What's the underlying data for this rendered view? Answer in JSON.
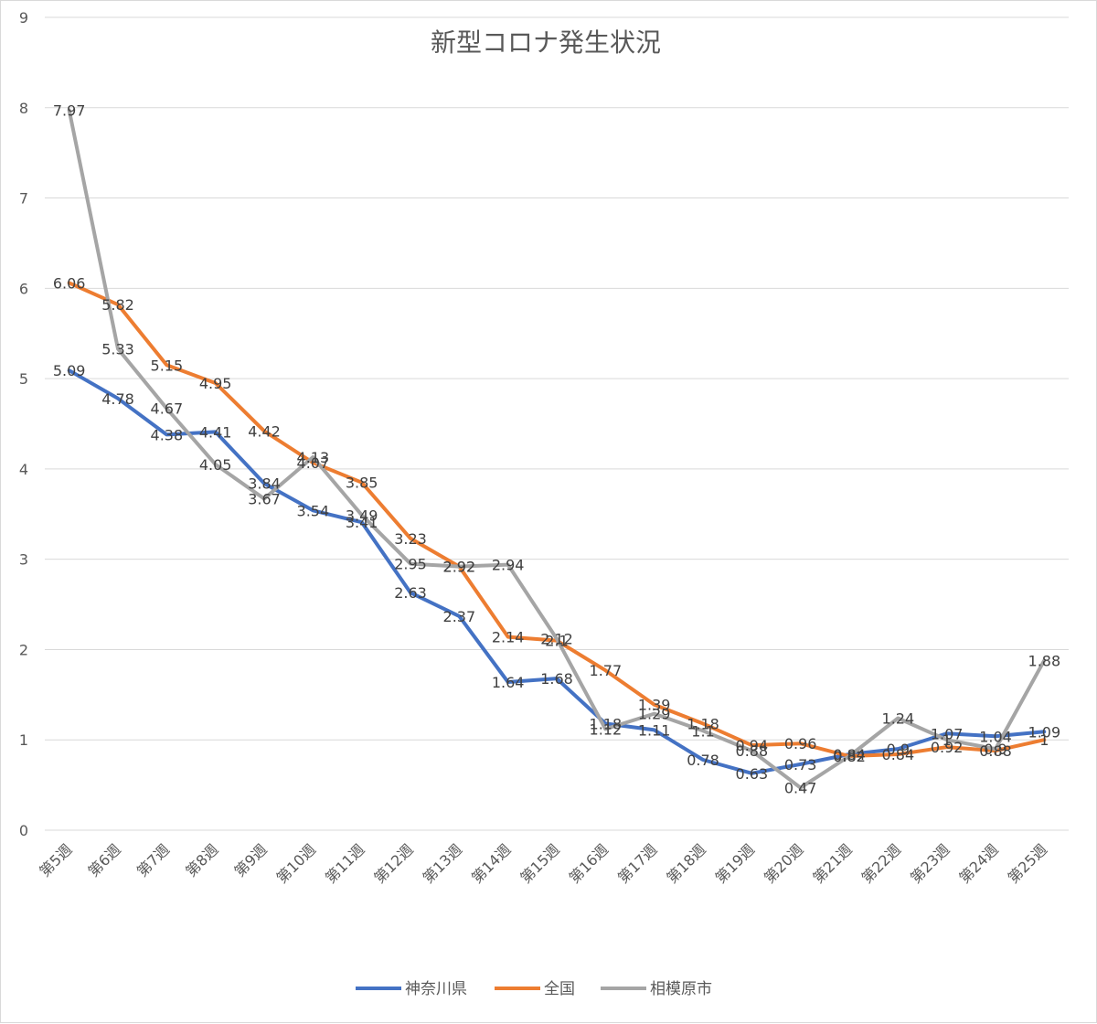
{
  "chart_data": {
    "type": "line",
    "title": "新型コロナ発生状況",
    "xlabel": "",
    "ylabel": "",
    "ylim": [
      0,
      9
    ],
    "yticks": [
      0,
      1,
      2,
      3,
      4,
      5,
      6,
      7,
      8,
      9
    ],
    "grid": true,
    "legend_position": "bottom",
    "categories": [
      "第5週",
      "第6週",
      "第7週",
      "第8週",
      "第9週",
      "第10週",
      "第11週",
      "第12週",
      "第13週",
      "第14週",
      "第15週",
      "第16週",
      "第17週",
      "第18週",
      "第19週",
      "第20週",
      "第21週",
      "第22週",
      "第23週",
      "第24週",
      "第25週"
    ],
    "series": [
      {
        "name": "神奈川県",
        "color": "#4472c4",
        "values": [
          5.09,
          4.78,
          4.38,
          4.41,
          3.84,
          3.54,
          3.41,
          2.63,
          2.37,
          1.64,
          1.68,
          1.18,
          1.11,
          0.78,
          0.63,
          0.73,
          0.84,
          0.9,
          1.07,
          1.04,
          1.09
        ]
      },
      {
        "name": "全国",
        "color": "#ed7d31",
        "values": [
          6.06,
          5.82,
          5.15,
          4.95,
          4.42,
          4.07,
          3.85,
          3.23,
          2.92,
          2.14,
          2.1,
          1.77,
          1.39,
          1.18,
          0.94,
          0.96,
          0.82,
          0.84,
          0.92,
          0.88,
          1
        ]
      },
      {
        "name": "相模原市",
        "color": "#a5a5a5",
        "values": [
          7.97,
          5.33,
          4.67,
          4.05,
          3.67,
          4.13,
          3.49,
          2.95,
          2.92,
          2.94,
          2.12,
          1.12,
          1.29,
          1.1,
          0.88,
          0.47,
          0.82,
          1.24,
          1,
          0.9,
          1.88
        ]
      }
    ]
  }
}
